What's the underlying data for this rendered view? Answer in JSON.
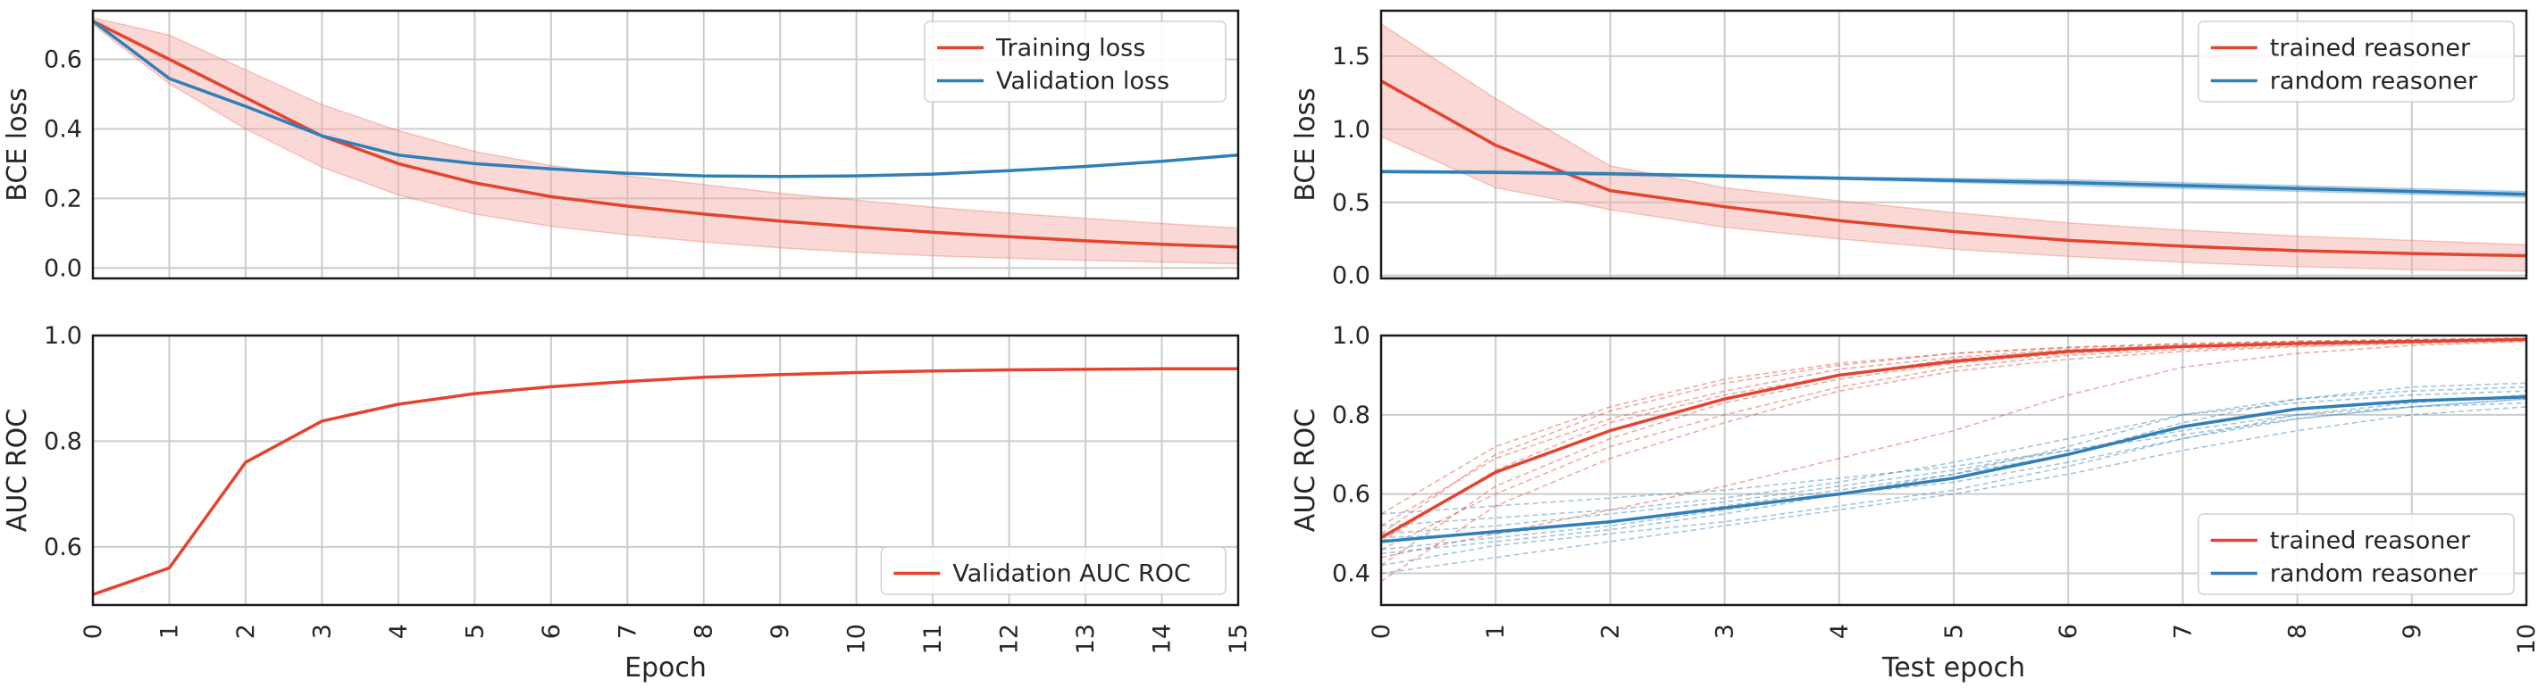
{
  "colors": {
    "red": "#e5432d",
    "blue": "#2f7fb8",
    "band": "#f4a9a1",
    "grid": "#cccccc"
  },
  "chart_data": [
    {
      "type": "line",
      "ylabel": "BCE loss",
      "xlabel": "",
      "xlim": [
        0,
        15
      ],
      "ylim": [
        -0.03,
        0.74
      ],
      "yticks": [
        0.0,
        0.2,
        0.4,
        0.6
      ],
      "ytick_labels": [
        "0.0",
        "0.2",
        "0.4",
        "0.6"
      ],
      "xticks": [
        0,
        1,
        2,
        3,
        4,
        5,
        6,
        7,
        8,
        9,
        10,
        11,
        12,
        13,
        14,
        15
      ],
      "show_xtick_labels": false,
      "legend": "top-right",
      "grid": true,
      "series": [
        {
          "name": "Training loss",
          "color": "red",
          "x": [
            0,
            1,
            2,
            3,
            4,
            5,
            6,
            7,
            8,
            9,
            10,
            11,
            12,
            13,
            14,
            15
          ],
          "y": [
            0.71,
            0.6,
            0.49,
            0.38,
            0.3,
            0.245,
            0.205,
            0.178,
            0.155,
            0.135,
            0.118,
            0.103,
            0.09,
            0.078,
            0.068,
            0.06
          ],
          "band_lower": [
            0.7,
            0.53,
            0.4,
            0.29,
            0.21,
            0.155,
            0.12,
            0.095,
            0.075,
            0.058,
            0.045,
            0.035,
            0.028,
            0.022,
            0.017,
            0.012
          ],
          "band_upper": [
            0.72,
            0.67,
            0.57,
            0.47,
            0.395,
            0.335,
            0.295,
            0.265,
            0.24,
            0.215,
            0.195,
            0.175,
            0.158,
            0.143,
            0.128,
            0.115
          ]
        },
        {
          "name": "Validation loss",
          "color": "blue",
          "x": [
            0,
            1,
            2,
            3,
            4,
            5,
            6,
            7,
            8,
            9,
            10,
            11,
            12,
            13,
            14,
            15
          ],
          "y": [
            0.71,
            0.545,
            0.465,
            0.38,
            0.325,
            0.3,
            0.285,
            0.272,
            0.265,
            0.263,
            0.265,
            0.27,
            0.28,
            0.292,
            0.307,
            0.325
          ]
        }
      ]
    },
    {
      "type": "line",
      "ylabel": "BCE loss",
      "xlabel": "",
      "xlim": [
        0,
        10
      ],
      "ylim": [
        -0.02,
        1.81
      ],
      "yticks": [
        0.0,
        0.5,
        1.0,
        1.5
      ],
      "ytick_labels": [
        "0.0",
        "0.5",
        "1.0",
        "1.5"
      ],
      "xticks": [
        0,
        1,
        2,
        3,
        4,
        5,
        6,
        7,
        8,
        9,
        10
      ],
      "show_xtick_labels": false,
      "legend": "top-right",
      "grid": true,
      "series": [
        {
          "name": "trained reasoner",
          "color": "red",
          "x": [
            0,
            1,
            2,
            3,
            4,
            5,
            6,
            7,
            8,
            9,
            10
          ],
          "y": [
            1.33,
            0.89,
            0.58,
            0.47,
            0.375,
            0.3,
            0.24,
            0.2,
            0.17,
            0.15,
            0.135
          ],
          "band_lower": [
            0.95,
            0.6,
            0.45,
            0.33,
            0.25,
            0.18,
            0.13,
            0.09,
            0.06,
            0.04,
            0.03
          ],
          "band_upper": [
            1.72,
            1.21,
            0.75,
            0.6,
            0.51,
            0.43,
            0.36,
            0.31,
            0.27,
            0.24,
            0.21
          ]
        },
        {
          "name": "random reasoner",
          "color": "blue",
          "x": [
            0,
            1,
            2,
            3,
            4,
            5,
            6,
            7,
            8,
            9,
            10
          ],
          "y": [
            0.71,
            0.705,
            0.695,
            0.68,
            0.665,
            0.65,
            0.635,
            0.615,
            0.595,
            0.575,
            0.555
          ],
          "band_lower": [
            0.7,
            0.695,
            0.685,
            0.67,
            0.655,
            0.635,
            0.615,
            0.595,
            0.575,
            0.555,
            0.535
          ],
          "band_upper": [
            0.72,
            0.715,
            0.705,
            0.69,
            0.675,
            0.665,
            0.655,
            0.635,
            0.615,
            0.595,
            0.575
          ]
        }
      ]
    },
    {
      "type": "line",
      "ylabel": "AUC ROC",
      "xlabel": "Epoch",
      "xlim": [
        0,
        15
      ],
      "ylim": [
        0.49,
        1.0
      ],
      "yticks": [
        0.6,
        0.8,
        1.0
      ],
      "ytick_labels": [
        "0.6",
        "0.8",
        "1.0"
      ],
      "xticks": [
        0,
        1,
        2,
        3,
        4,
        5,
        6,
        7,
        8,
        9,
        10,
        11,
        12,
        13,
        14,
        15
      ],
      "xtick_labels": [
        "0",
        "1",
        "2",
        "3",
        "4",
        "5",
        "6",
        "7",
        "8",
        "9",
        "10",
        "11",
        "12",
        "13",
        "14",
        "15"
      ],
      "show_xtick_labels": true,
      "legend": "bottom-right",
      "grid": true,
      "series": [
        {
          "name": "Validation AUC ROC",
          "color": "red",
          "x": [
            0,
            1,
            2,
            3,
            4,
            5,
            6,
            7,
            8,
            9,
            10,
            11,
            12,
            13,
            14,
            15
          ],
          "y": [
            0.51,
            0.56,
            0.76,
            0.838,
            0.87,
            0.89,
            0.903,
            0.913,
            0.921,
            0.926,
            0.93,
            0.933,
            0.935,
            0.936,
            0.937,
            0.937
          ]
        }
      ]
    },
    {
      "type": "line",
      "ylabel": "AUC ROC",
      "xlabel": "Test epoch",
      "xlim": [
        0,
        10
      ],
      "ylim": [
        0.32,
        1.0
      ],
      "yticks": [
        0.4,
        0.6,
        0.8,
        1.0
      ],
      "ytick_labels": [
        "0.4",
        "0.6",
        "0.8",
        "1.0"
      ],
      "xticks": [
        0,
        1,
        2,
        3,
        4,
        5,
        6,
        7,
        8,
        9,
        10
      ],
      "xtick_labels": [
        "0",
        "1",
        "2",
        "3",
        "4",
        "5",
        "6",
        "7",
        "8",
        "9",
        "10"
      ],
      "show_xtick_labels": true,
      "legend": "bottom-right",
      "grid": true,
      "series": [
        {
          "name": "trained reasoner",
          "color": "red",
          "x": [
            0,
            1,
            2,
            3,
            4,
            5,
            6,
            7,
            8,
            9,
            10
          ],
          "y": [
            0.49,
            0.655,
            0.76,
            0.84,
            0.9,
            0.935,
            0.96,
            0.972,
            0.98,
            0.985,
            0.99
          ]
        },
        {
          "name": "random reasoner",
          "color": "blue",
          "x": [
            0,
            1,
            2,
            3,
            4,
            5,
            6,
            7,
            8,
            9,
            10
          ],
          "y": [
            0.48,
            0.505,
            0.53,
            0.565,
            0.6,
            0.64,
            0.7,
            0.77,
            0.815,
            0.835,
            0.845
          ]
        }
      ],
      "individual_runs": [
        {
          "color": "red",
          "y": [
            0.42,
            0.62,
            0.74,
            0.83,
            0.89,
            0.93,
            0.955,
            0.97,
            0.98,
            0.985,
            0.99
          ]
        },
        {
          "color": "red",
          "y": [
            0.52,
            0.69,
            0.79,
            0.86,
            0.915,
            0.945,
            0.965,
            0.975,
            0.983,
            0.988,
            0.992
          ]
        },
        {
          "color": "red",
          "y": [
            0.46,
            0.6,
            0.72,
            0.8,
            0.87,
            0.92,
            0.95,
            0.965,
            0.975,
            0.982,
            0.988
          ]
        },
        {
          "color": "red",
          "y": [
            0.5,
            0.7,
            0.81,
            0.88,
            0.925,
            0.955,
            0.97,
            0.98,
            0.986,
            0.99,
            0.993
          ]
        },
        {
          "color": "red",
          "y": [
            0.38,
            0.57,
            0.69,
            0.78,
            0.86,
            0.91,
            0.94,
            0.96,
            0.972,
            0.98,
            0.986
          ]
        },
        {
          "color": "red",
          "y": [
            0.55,
            0.72,
            0.82,
            0.89,
            0.93,
            0.955,
            0.97,
            0.978,
            0.985,
            0.989,
            0.993
          ]
        },
        {
          "color": "red",
          "y": [
            0.44,
            0.5,
            0.56,
            0.62,
            0.69,
            0.76,
            0.85,
            0.92,
            0.955,
            0.975,
            0.985
          ]
        },
        {
          "color": "red",
          "y": [
            0.48,
            0.66,
            0.78,
            0.85,
            0.9,
            0.94,
            0.962,
            0.974,
            0.982,
            0.987,
            0.991
          ]
        },
        {
          "color": "blue",
          "y": [
            0.45,
            0.48,
            0.51,
            0.55,
            0.6,
            0.65,
            0.72,
            0.8,
            0.84,
            0.86,
            0.87
          ]
        },
        {
          "color": "blue",
          "y": [
            0.5,
            0.52,
            0.55,
            0.58,
            0.62,
            0.66,
            0.71,
            0.76,
            0.8,
            0.82,
            0.83
          ]
        },
        {
          "color": "blue",
          "y": [
            0.42,
            0.47,
            0.5,
            0.53,
            0.57,
            0.61,
            0.67,
            0.74,
            0.8,
            0.83,
            0.85
          ]
        },
        {
          "color": "blue",
          "y": [
            0.52,
            0.54,
            0.56,
            0.59,
            0.63,
            0.68,
            0.74,
            0.8,
            0.83,
            0.85,
            0.86
          ]
        },
        {
          "color": "blue",
          "y": [
            0.46,
            0.49,
            0.52,
            0.56,
            0.6,
            0.63,
            0.68,
            0.74,
            0.79,
            0.82,
            0.84
          ]
        },
        {
          "color": "blue",
          "y": [
            0.55,
            0.57,
            0.59,
            0.61,
            0.64,
            0.67,
            0.71,
            0.75,
            0.79,
            0.82,
            0.84
          ]
        },
        {
          "color": "blue",
          "y": [
            0.4,
            0.44,
            0.48,
            0.52,
            0.56,
            0.6,
            0.65,
            0.71,
            0.76,
            0.8,
            0.82
          ]
        },
        {
          "color": "blue",
          "y": [
            0.49,
            0.5,
            0.53,
            0.57,
            0.61,
            0.65,
            0.7,
            0.78,
            0.84,
            0.87,
            0.88
          ]
        }
      ]
    }
  ]
}
